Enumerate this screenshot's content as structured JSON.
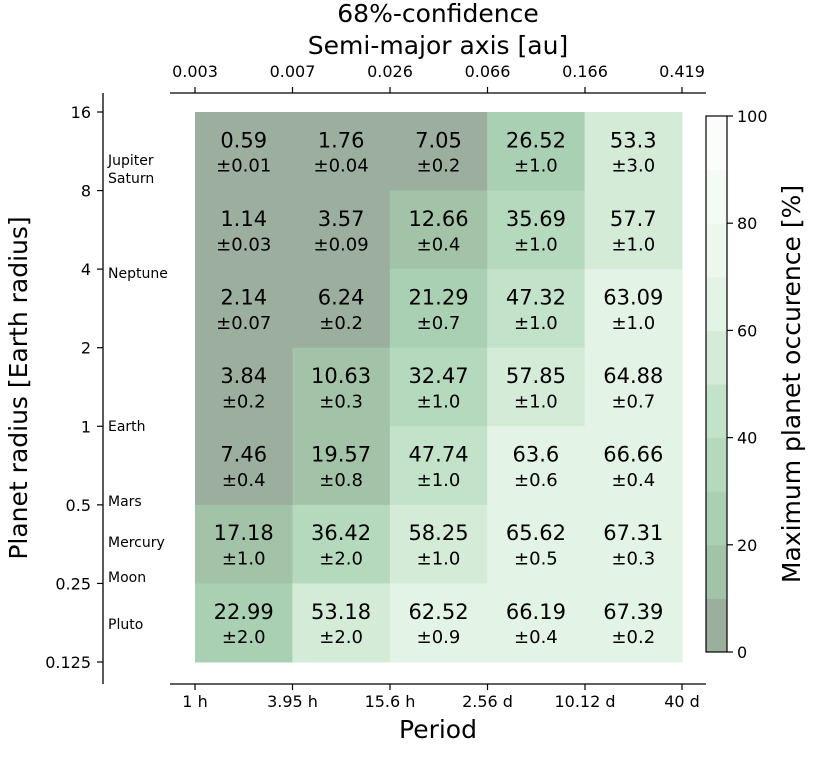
{
  "chart_data": {
    "type": "heatmap",
    "title": "68%-confidence",
    "xlabel": "Period",
    "ylabel": "Planet radius [Earth radius]",
    "top_xlabel": "Semi-major axis [au]",
    "colorbar_label": "Maximum planet occurence [%]",
    "colorbar_range": [
      0,
      100
    ],
    "colorbar_ticks": [
      "0",
      "20",
      "40",
      "60",
      "80",
      "100"
    ],
    "x_tick_labels": [
      "1 h",
      "3.95 h",
      "15.6 h",
      "2.56 d",
      "10.12 d",
      "40 d"
    ],
    "top_x_tick_labels": [
      "0.003",
      "0.007",
      "0.026",
      "0.066",
      "0.166",
      "0.419"
    ],
    "y_tick_labels": [
      "16",
      "8",
      "4",
      "2",
      "1",
      "0.5",
      "0.25",
      "0.125"
    ],
    "planet_labels": [
      {
        "text": "Jupiter",
        "radius": 10.97
      },
      {
        "text": "Saturn",
        "radius": 9.14
      },
      {
        "text": "Neptune",
        "radius": 3.86
      },
      {
        "text": "Earth",
        "radius": 1.0
      },
      {
        "text": "Mars",
        "radius": 0.53
      },
      {
        "text": "Mercury",
        "radius": 0.38
      },
      {
        "text": "Moon",
        "radius": 0.27
      },
      {
        "text": "Pluto",
        "radius": 0.19
      }
    ],
    "rows": [
      {
        "values": [
          "0.59",
          "1.76",
          "7.05",
          "26.52",
          "53.3"
        ],
        "errors": [
          "±0.01",
          "±0.04",
          "±0.2",
          "±1.0",
          "±3.0"
        ]
      },
      {
        "values": [
          "1.14",
          "3.57",
          "12.66",
          "35.69",
          "57.7"
        ],
        "errors": [
          "±0.03",
          "±0.09",
          "±0.4",
          "±1.0",
          "±1.0"
        ]
      },
      {
        "values": [
          "2.14",
          "6.24",
          "21.29",
          "47.32",
          "63.09"
        ],
        "errors": [
          "±0.07",
          "±0.2",
          "±0.7",
          "±1.0",
          "±1.0"
        ]
      },
      {
        "values": [
          "3.84",
          "10.63",
          "32.47",
          "57.85",
          "64.88"
        ],
        "errors": [
          "±0.2",
          "±0.3",
          "±1.0",
          "±1.0",
          "±0.7"
        ]
      },
      {
        "values": [
          "7.46",
          "19.57",
          "47.74",
          "63.6",
          "66.66"
        ],
        "errors": [
          "±0.4",
          "±0.8",
          "±1.0",
          "±0.6",
          "±0.4"
        ]
      },
      {
        "values": [
          "17.18",
          "36.42",
          "58.25",
          "65.62",
          "67.31"
        ],
        "errors": [
          "±1.0",
          "±2.0",
          "±1.0",
          "±0.5",
          "±0.3"
        ]
      },
      {
        "values": [
          "22.99",
          "53.18",
          "62.52",
          "66.19",
          "67.39"
        ],
        "errors": [
          "±2.0",
          "±2.0",
          "±0.9",
          "±0.4",
          "±0.2"
        ]
      }
    ],
    "colors": {
      "band_0_10": "#9caf9f",
      "band_10_20": "#a2c3a8",
      "band_20_30": "#aad0b3",
      "band_30_40": "#b5d9bd",
      "band_40_50": "#c3e2ca",
      "band_50_60": "#d4ebd8",
      "band_60_70": "#e3f3e5",
      "band_70_80": "#edf7ee",
      "band_80_90": "#f4faf4",
      "band_90_100": "#fbfdfb",
      "cell_text": "#4d5651"
    }
  }
}
